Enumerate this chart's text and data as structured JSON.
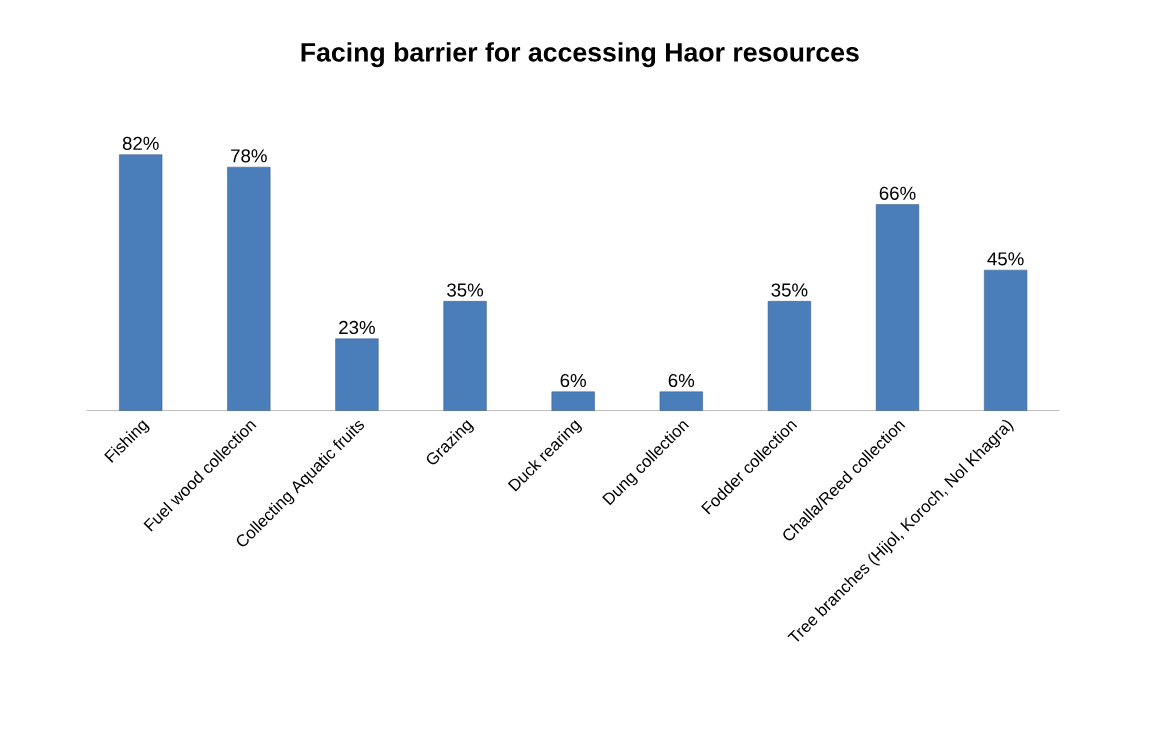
{
  "chart_data": {
    "type": "bar",
    "title": "Facing barrier for accessing Haor resources",
    "categories": [
      "Fishing",
      "Fuel wood collection",
      "Collecting Aquatic fruits",
      "Grazing",
      "Duck rearing",
      "Dung collection",
      "Fodder collection",
      "Challa/Reed collection",
      "Tree branches (Hijol, Koroch, Nol Khagra)"
    ],
    "values": [
      82,
      78,
      23,
      35,
      6,
      6,
      35,
      66,
      45
    ],
    "value_labels": [
      "82%",
      "78%",
      "23%",
      "35%",
      "6%",
      "6%",
      "35%",
      "66%",
      "45%"
    ],
    "color": "#4a7ebb"
  }
}
